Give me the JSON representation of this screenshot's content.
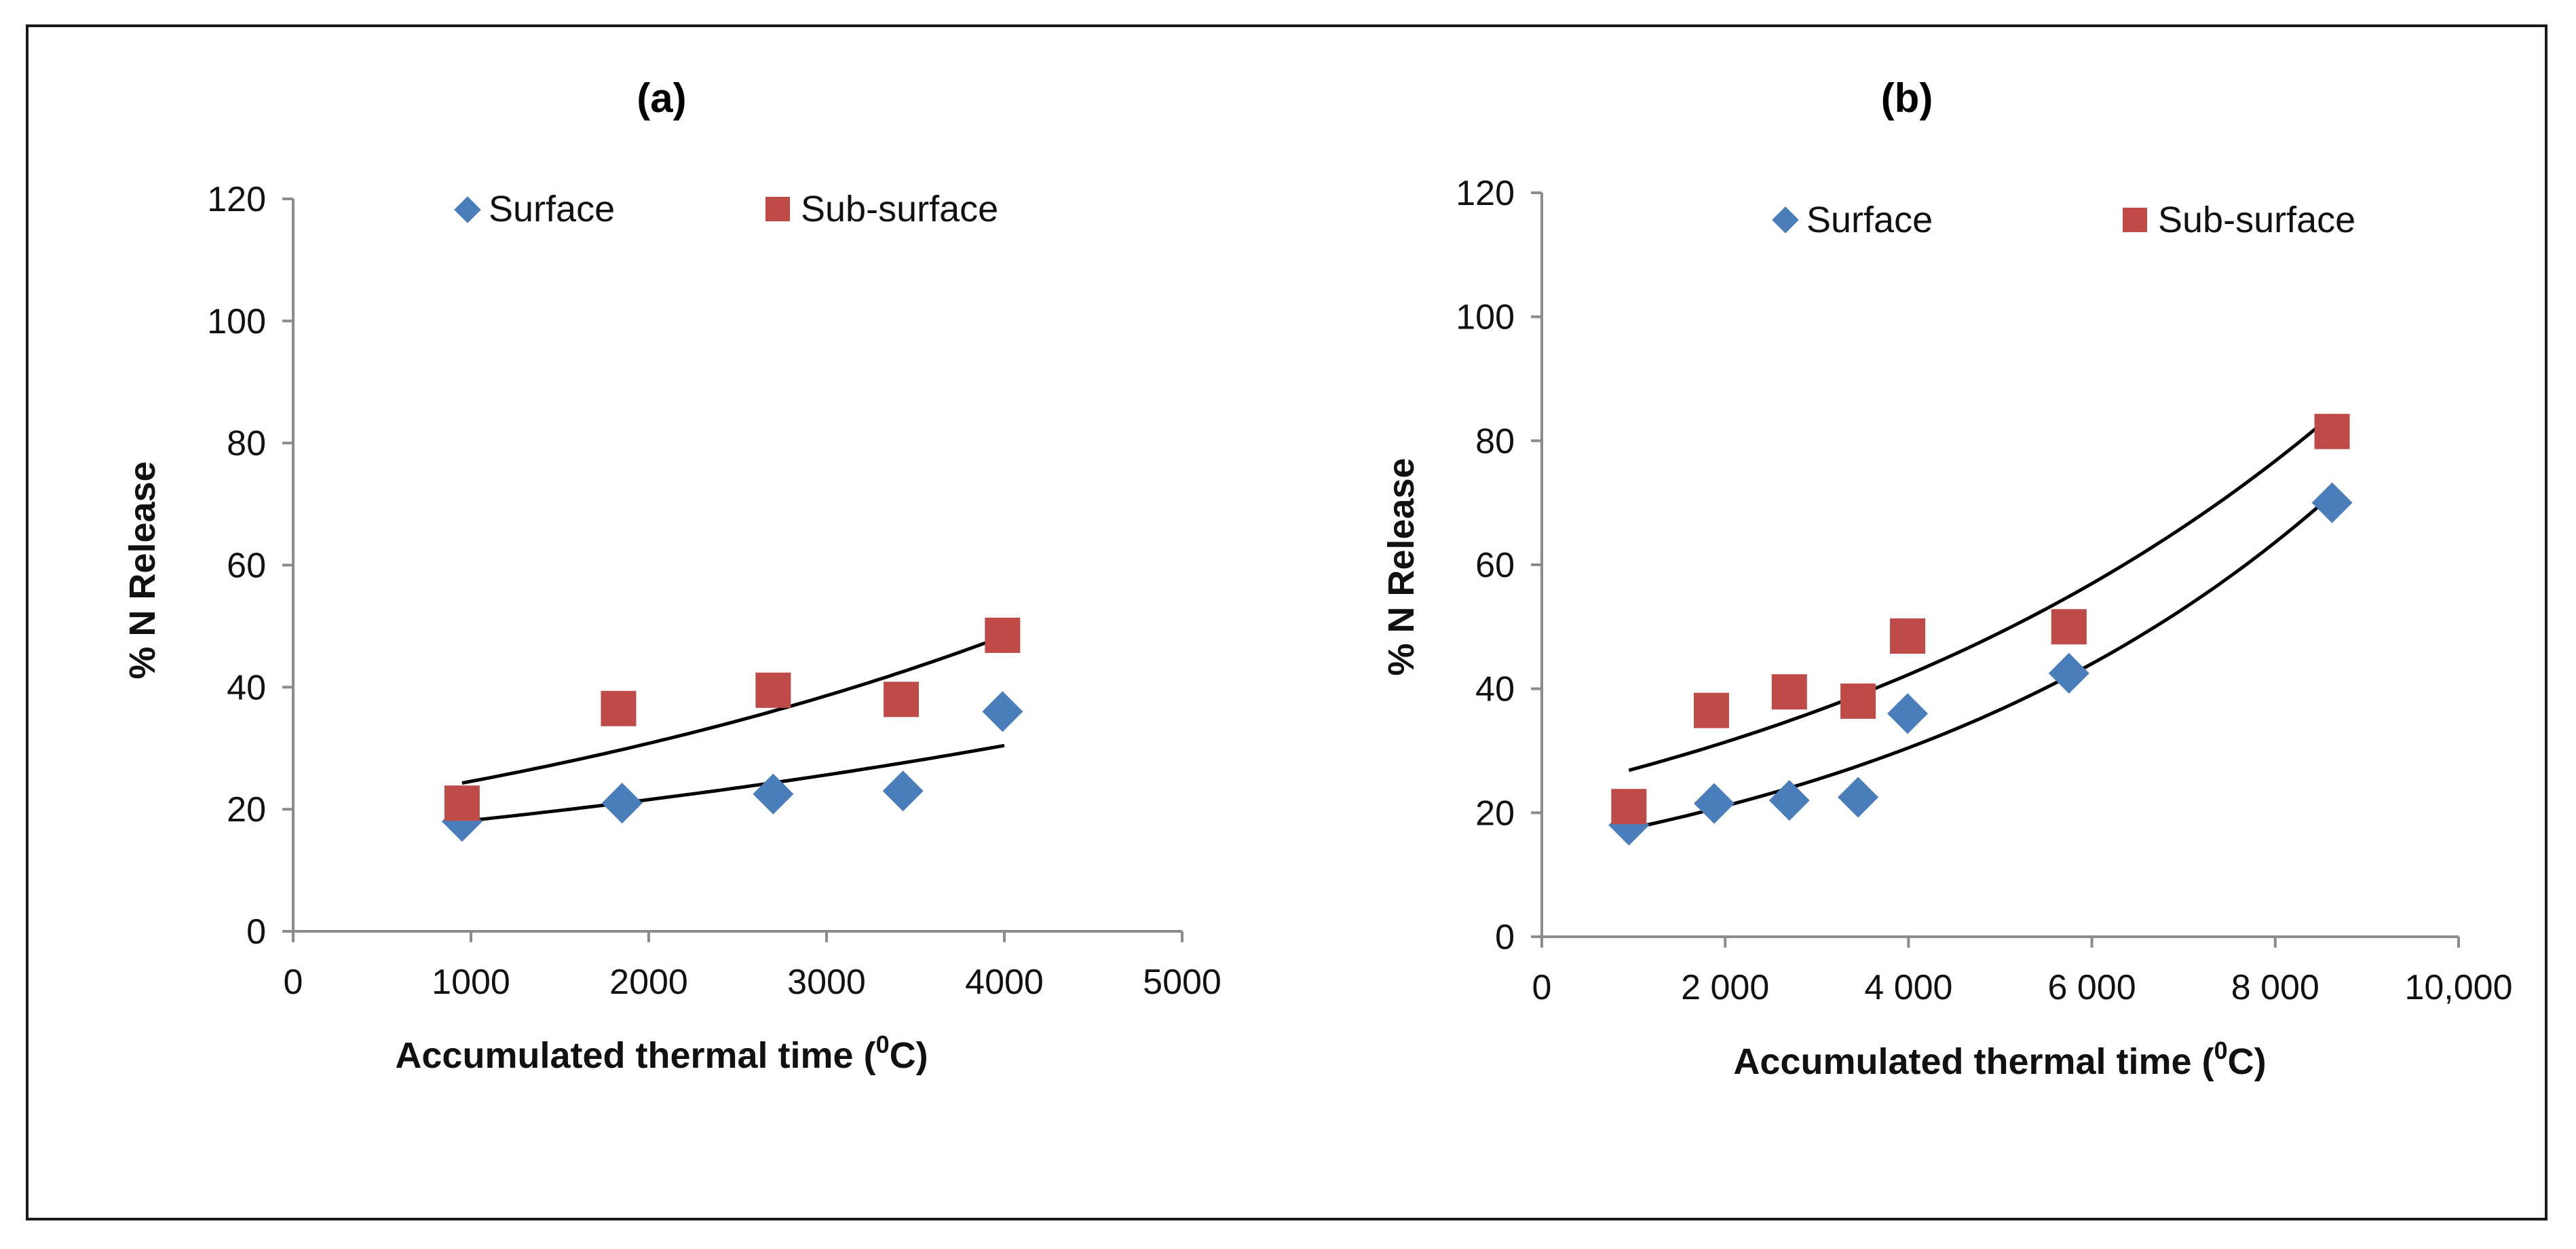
{
  "chart_data": [
    {
      "type": "scatter",
      "title": "(a)",
      "xlabel": "Accumulated thermal time (",
      "xlabel_sup": "0",
      "xlabel_tail": "C)",
      "ylabel": "% N Release",
      "xlim": [
        0,
        5000
      ],
      "ylim": [
        0,
        120
      ],
      "x_ticks": [
        0,
        1000,
        2000,
        3000,
        4000,
        5000
      ],
      "x_tick_labels": [
        "0",
        "1000",
        "2000",
        "3000",
        "4000",
        "5000"
      ],
      "y_ticks": [
        0,
        20,
        40,
        60,
        80,
        100,
        120
      ],
      "y_tick_labels": [
        "0",
        "20",
        "40",
        "60",
        "80",
        "100",
        "120"
      ],
      "legend_position": "top",
      "series": [
        {
          "name": "Surface",
          "marker": "diamond",
          "color": "#4a7ebb",
          "x": [
            950,
            1850,
            2700,
            3430,
            3990
          ],
          "y": [
            18,
            21,
            22.5,
            23,
            36
          ],
          "trend": {
            "type": "exponential",
            "a": 15.3,
            "b": 0.000172,
            "x_range": [
              950,
              4000
            ]
          }
        },
        {
          "name": "Sub-surface",
          "marker": "square",
          "color": "#be4b48",
          "x": [
            950,
            1830,
            2700,
            3420,
            3990
          ],
          "y": [
            21,
            36.5,
            39.5,
            38,
            48.5
          ],
          "trend": {
            "type": "exponential",
            "a": 19.6,
            "b": 0.000226,
            "x_range": [
              950,
              4000
            ]
          }
        }
      ]
    },
    {
      "type": "scatter",
      "title": "(b)",
      "xlabel": "Accumulated thermal time (",
      "xlabel_sup": "0",
      "xlabel_tail": "C)",
      "ylabel": "% N Release",
      "xlim": [
        0,
        10000
      ],
      "ylim": [
        0,
        120
      ],
      "x_ticks": [
        0,
        2000,
        4000,
        6000,
        8000,
        10000
      ],
      "x_tick_labels": [
        "0",
        "2 000",
        "4 000",
        "6 000",
        "8 000",
        "10,000"
      ],
      "y_ticks": [
        0,
        20,
        40,
        60,
        80,
        100,
        120
      ],
      "y_tick_labels": [
        "0",
        "20",
        "40",
        "60",
        "80",
        "100",
        "120"
      ],
      "legend_position": "top",
      "series": [
        {
          "name": "Surface",
          "marker": "diamond",
          "color": "#4a7ebb",
          "x": [
            950,
            1880,
            2700,
            3450,
            3990,
            5750,
            8620
          ],
          "y": [
            18,
            21.5,
            22,
            22.5,
            36,
            42.5,
            70
          ],
          "trend": {
            "type": "exponential",
            "a": 14.6,
            "b": 0.000184,
            "x_range": [
              950,
              8620
            ]
          }
        },
        {
          "name": "Sub-surface",
          "marker": "square",
          "color": "#be4b48",
          "x": [
            950,
            1850,
            2700,
            3450,
            3990,
            5750,
            8620
          ],
          "y": [
            21,
            36.5,
            39.5,
            38,
            48.5,
            50,
            81.5
          ],
          "trend": {
            "type": "exponential",
            "a": 23.3,
            "b": 0.000149,
            "x_range": [
              950,
              8620
            ]
          }
        }
      ]
    }
  ]
}
